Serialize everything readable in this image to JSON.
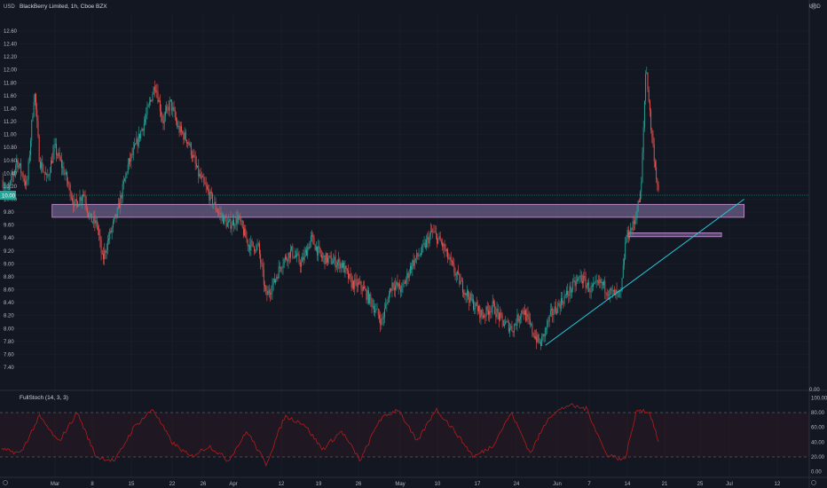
{
  "header": {
    "symbol_title": "BlackBerry Limited, 1h, Cboe BZX",
    "currency": "USD"
  },
  "indicator": {
    "title": "FullStoch (14, 3, 3)",
    "y_ticks": [
      "100.00",
      "80.00",
      "60.00",
      "40.00",
      "20.00",
      "0.00"
    ],
    "levels": [
      80,
      20
    ],
    "color": "#b71c1c"
  },
  "chart_data": {
    "type": "candlestick",
    "title": "BlackBerry Limited, 1h, Cboe BZX",
    "ylim": [
      7.2,
      12.9
    ],
    "y_ticks": [
      "12.60",
      "12.40",
      "12.20",
      "12.00",
      "11.80",
      "11.60",
      "11.40",
      "11.20",
      "11.00",
      "10.80",
      "10.60",
      "10.40",
      "10.20",
      "10.00",
      "9.80",
      "9.60",
      "9.40",
      "9.20",
      "9.00",
      "8.80",
      "8.60",
      "8.40",
      "8.20",
      "8.00",
      "7.80",
      "7.60",
      "7.40"
    ],
    "y_tick_values": [
      12.6,
      12.4,
      12.2,
      12.0,
      11.8,
      11.6,
      11.4,
      11.2,
      11.0,
      10.8,
      10.6,
      10.4,
      10.2,
      10.0,
      9.8,
      9.6,
      9.4,
      9.2,
      9.0,
      8.8,
      8.6,
      8.4,
      8.2,
      8.0,
      7.8,
      7.6,
      7.4
    ],
    "x_ticks": [
      "Mar",
      "8",
      "15",
      "22",
      "26",
      "Apr",
      "12",
      "19",
      "26",
      "May",
      "10",
      "17",
      "24",
      "Jun",
      "7",
      "14",
      "21",
      "25",
      "Jul",
      "12"
    ],
    "current_price": 10.0,
    "colors": {
      "up": "#26a69a",
      "down": "#ef5350",
      "zone": "#b39ddb",
      "trendline": "#26c6da"
    },
    "price_path": [
      [
        0,
        10.3
      ],
      [
        0.5,
        10.1
      ],
      [
        1.2,
        10.6
      ],
      [
        2.0,
        10.2
      ],
      [
        2.6,
        11.7
      ],
      [
        3.0,
        10.6
      ],
      [
        3.6,
        10.3
      ],
      [
        4.2,
        10.8
      ],
      [
        5.0,
        10.4
      ],
      [
        5.8,
        9.9
      ],
      [
        6.5,
        10.1
      ],
      [
        7.0,
        9.7
      ],
      [
        7.6,
        9.6
      ],
      [
        8.0,
        9.05
      ],
      [
        8.5,
        9.4
      ],
      [
        9.2,
        9.8
      ],
      [
        10.0,
        10.5
      ],
      [
        10.8,
        10.9
      ],
      [
        11.5,
        11.3
      ],
      [
        12.2,
        11.8
      ],
      [
        12.8,
        11.2
      ],
      [
        13.4,
        11.5
      ],
      [
        14.0,
        11.1
      ],
      [
        14.8,
        10.9
      ],
      [
        15.6,
        10.4
      ],
      [
        16.4,
        10.1
      ],
      [
        17.2,
        9.8
      ],
      [
        18.0,
        9.6
      ],
      [
        18.8,
        9.7
      ],
      [
        19.6,
        9.3
      ],
      [
        20.4,
        9.25
      ],
      [
        21.0,
        8.5
      ],
      [
        21.6,
        8.7
      ],
      [
        22.2,
        9.0
      ],
      [
        23.0,
        9.2
      ],
      [
        23.8,
        9.0
      ],
      [
        24.6,
        9.4
      ],
      [
        25.4,
        9.1
      ],
      [
        26.2,
        9.05
      ],
      [
        27.0,
        9.0
      ],
      [
        27.8,
        8.7
      ],
      [
        28.6,
        8.65
      ],
      [
        29.4,
        8.4
      ],
      [
        30.2,
        8.1
      ],
      [
        31.0,
        8.7
      ],
      [
        31.8,
        8.6
      ],
      [
        32.6,
        9.0
      ],
      [
        33.4,
        9.2
      ],
      [
        34.2,
        9.5
      ],
      [
        35.0,
        9.3
      ],
      [
        35.8,
        8.95
      ],
      [
        36.6,
        8.65
      ],
      [
        37.4,
        8.4
      ],
      [
        38.2,
        8.2
      ],
      [
        39.0,
        8.35
      ],
      [
        39.8,
        8.1
      ],
      [
        40.6,
        8.0
      ],
      [
        41.4,
        8.3
      ],
      [
        42.2,
        7.95
      ],
      [
        42.8,
        7.75
      ],
      [
        43.6,
        8.2
      ],
      [
        44.4,
        8.4
      ],
      [
        45.2,
        8.6
      ],
      [
        46.0,
        8.8
      ],
      [
        46.8,
        8.6
      ],
      [
        47.6,
        8.7
      ],
      [
        48.4,
        8.55
      ],
      [
        49.2,
        8.5
      ],
      [
        49.6,
        9.4
      ],
      [
        50.2,
        9.6
      ],
      [
        50.8,
        10.1
      ],
      [
        51.2,
        12.1
      ],
      [
        51.6,
        11.1
      ],
      [
        52.2,
        10.05
      ]
    ],
    "stoch_path": [
      [
        0,
        30
      ],
      [
        1.5,
        25
      ],
      [
        3,
        75
      ],
      [
        4.5,
        40
      ],
      [
        6,
        80
      ],
      [
        7.5,
        20
      ],
      [
        9,
        15
      ],
      [
        10.5,
        60
      ],
      [
        12,
        85
      ],
      [
        13.5,
        40
      ],
      [
        15,
        20
      ],
      [
        16.5,
        35
      ],
      [
        18,
        15
      ],
      [
        19.5,
        55
      ],
      [
        21,
        10
      ],
      [
        22.5,
        75
      ],
      [
        24,
        65
      ],
      [
        25.5,
        30
      ],
      [
        27,
        55
      ],
      [
        28.5,
        15
      ],
      [
        30,
        70
      ],
      [
        31.5,
        85
      ],
      [
        33,
        40
      ],
      [
        34.5,
        85
      ],
      [
        36,
        55
      ],
      [
        37.5,
        20
      ],
      [
        39,
        35
      ],
      [
        40.5,
        80
      ],
      [
        42,
        25
      ],
      [
        43.5,
        75
      ],
      [
        45,
        90
      ],
      [
        46.5,
        85
      ],
      [
        48,
        25
      ],
      [
        49.5,
        15
      ],
      [
        50.5,
        85
      ],
      [
        51.5,
        80
      ],
      [
        52.2,
        40
      ]
    ],
    "zones": [
      {
        "x0": 4.0,
        "x1": 59.0,
        "y0": 9.72,
        "y1": 9.92
      },
      {
        "x0": 49.8,
        "x1": 57.2,
        "y0": 9.42,
        "y1": 9.48
      }
    ],
    "trendline": {
      "x0": 43.2,
      "y0": 7.74,
      "x1": 59.0,
      "y1": 10.0
    }
  }
}
